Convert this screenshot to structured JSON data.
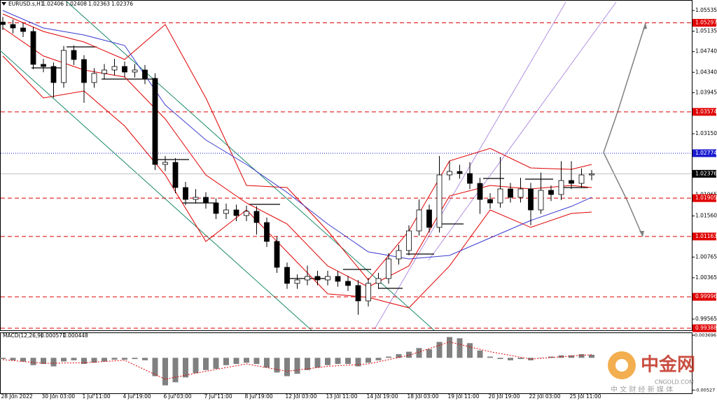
{
  "chart_data": {
    "type": "candlestick",
    "title": "EURUSD.s,H1",
    "header_values": [
      1.02406,
      1.02408,
      1.02363,
      1.02376
    ],
    "categories": [
      null,
      "28 Jun 2022",
      null,
      null,
      null,
      "30 Jun 03:00",
      null,
      null,
      null,
      "1 Jul 11:00",
      null,
      null,
      null,
      "4 Jul 19:00",
      null,
      null,
      null,
      "6 Jul 03:00",
      null,
      null,
      null,
      "7 Jul 11:00",
      null,
      null,
      null,
      "8 Jul 19:00",
      null,
      null,
      null,
      "12 Jul 03:00",
      null,
      null,
      null,
      "13 Jul 11:00",
      null,
      null,
      null,
      "14 Jul 19:00",
      null,
      null,
      null,
      "18 Jul 03:00",
      null,
      null,
      null,
      "19 Jul 11:00",
      null,
      null,
      null,
      "20 Jul 19:00",
      null,
      null,
      null,
      "22 Jul 03:00",
      null,
      null,
      null,
      "25 Jul 11:00",
      null
    ],
    "open": [
      1.0531,
      1.05264,
      1.05197,
      1.05129,
      1.04493,
      1.04452,
      1.04141,
      1.04763,
      1.04587,
      1.04141,
      1.04317,
      1.04384,
      1.04452,
      1.04344,
      1.04384,
      1.04222,
      1.02557,
      1.02597,
      1.0211,
      1.0188,
      1.01921,
      1.01812,
      1.01609,
      1.01677,
      1.01569,
      1.0165,
      1.01433,
      1.01068,
      1.00567,
      1.00256,
      1.00323,
      1.00391,
      1.00323,
      1.00391,
      1.00296,
      1.00215,
      0.99917,
      1.00256,
      1.0035,
      1.00729,
      1.00892,
      1.01271,
      1.01677,
      1.01339,
      1.02354,
      1.02421,
      1.02381,
      1.02191,
      1.0188,
      1.01812,
      1.02083,
      1.01921,
      1.02083,
      1.01677,
      1.02056,
      1.01975,
      1.02246,
      1.02191,
      1.02354
    ],
    "high": [
      1.0541,
      1.0536,
      1.053,
      1.0521,
      1.046,
      1.0453,
      1.0485,
      1.0486,
      1.0467,
      1.0442,
      1.045,
      1.046,
      1.0455,
      1.045,
      1.0448,
      1.0432,
      1.0272,
      1.0268,
      1.0222,
      1.0208,
      1.0202,
      1.019,
      1.018,
      1.0178,
      1.0176,
      1.0175,
      1.0153,
      1.0116,
      1.0066,
      1.0043,
      1.006,
      1.005,
      1.005,
      1.005,
      1.004,
      1.0032,
      1.0036,
      1.0046,
      1.0084,
      1.01,
      1.0138,
      1.0188,
      1.0178,
      1.0272,
      1.0262,
      1.0255,
      1.026,
      1.023,
      1.02,
      1.027,
      1.022,
      1.023,
      1.022,
      1.024,
      1.0215,
      1.0262,
      1.0262,
      1.0248,
      1.0245
    ],
    "low": [
      1.0516,
      1.0509,
      1.0502,
      1.044,
      1.0434,
      1.0385,
      1.0404,
      1.0448,
      1.0375,
      1.0404,
      1.042,
      1.0428,
      1.0424,
      1.0424,
      1.0411,
      1.0245,
      1.0243,
      1.02,
      1.0177,
      1.018,
      1.017,
      1.015,
      1.015,
      1.0146,
      1.0146,
      1.012,
      1.0096,
      1.0046,
      1.0015,
      1.0015,
      1.0022,
      1.0022,
      1.0022,
      1.0019,
      1.0011,
      0.9965,
      0.9981,
      1.0015,
      1.0025,
      1.0062,
      1.008,
      1.0118,
      1.0124,
      1.0124,
      1.0225,
      1.0228,
      1.0208,
      1.016,
      1.017,
      1.0172,
      1.0182,
      1.0182,
      1.0138,
      1.016,
      1.0185,
      1.0187,
      1.0208,
      1.021,
      1.0225
    ],
    "close": [
      1.05264,
      1.05197,
      1.05129,
      1.04493,
      1.04452,
      1.04141,
      1.04763,
      1.04587,
      1.04141,
      1.04317,
      1.04384,
      1.04452,
      1.04344,
      1.04384,
      1.04222,
      1.02557,
      1.02597,
      1.0211,
      1.0188,
      1.01921,
      1.01812,
      1.01609,
      1.01677,
      1.01569,
      1.0165,
      1.01433,
      1.01068,
      1.00567,
      1.00256,
      1.00323,
      1.00391,
      1.00323,
      1.00391,
      1.00296,
      1.00215,
      0.99917,
      1.00256,
      1.0035,
      1.00729,
      1.00892,
      1.01271,
      1.01677,
      1.01339,
      1.02354,
      1.02421,
      1.02381,
      1.02191,
      1.0188,
      1.01812,
      1.02083,
      1.01921,
      1.02083,
      1.01677,
      1.02056,
      1.01975,
      1.02246,
      1.02191,
      1.02354,
      1.02376
    ],
    "up_color": "#ffffff",
    "down_color": "#000000",
    "ylim": [
      0.99348,
      1.05711
    ],
    "yticks": [
      1.05535,
      1.05135,
      {
        "value": 1.0474,
        "label": "1.04740"
      },
      {
        "value": 1.0434,
        "label": "1.04340"
      },
      1.03945,
      {
        "value": 1.0315,
        "label": "1.03150"
      },
      1.01965,
      {
        "value": 1.0156,
        "label": "1.01560"
      },
      1.00765,
      1.00365,
      0.99565
    ],
    "indicators": [
      {
        "color": "#e00000",
        "x": [
          0,
          4,
          8,
          12,
          16,
          20,
          24,
          28,
          32,
          36,
          40,
          44,
          48,
          52,
          56,
          58
        ],
        "values": [
          1.05467,
          1.05129,
          1.04926,
          1.04587,
          1.05264,
          1.03843,
          1.02151,
          1.0211,
          1.01271,
          1.00323,
          1.01271,
          1.02625,
          1.02868,
          1.02489,
          1.02462,
          1.02557
        ]
      },
      {
        "color": "#e00000",
        "x": [
          0,
          4,
          8,
          12,
          16,
          20,
          24,
          28,
          32,
          36,
          40,
          44,
          48,
          52,
          56,
          58
        ],
        "values": [
          1.05197,
          1.04655,
          1.04384,
          1.04249,
          1.03437,
          1.02354,
          1.01812,
          1.01406,
          1.00594,
          1.00188,
          1.00594,
          1.01948,
          1.02151,
          1.02083,
          1.02151,
          1.0211
        ]
      },
      {
        "color": "#e00000",
        "x": [
          0,
          4,
          8,
          12,
          16,
          20,
          24,
          28,
          32,
          36,
          40,
          44,
          48,
          52,
          56,
          58
        ],
        "values": [
          1.04655,
          1.03843,
          1.03978,
          1.03301,
          1.02354,
          1.01068,
          1.01677,
          1.00865,
          1.00053,
          0.99985,
          0.99782,
          1.00594,
          1.01677,
          1.01339,
          1.01609,
          1.01636
        ]
      },
      {
        "color": "#3a3ad0",
        "x": [
          0,
          4,
          8,
          12,
          16,
          20,
          24,
          28,
          32,
          36,
          40,
          44,
          48,
          52,
          56,
          58
        ],
        "values": [
          1.05535,
          1.05197,
          1.05061,
          1.04858,
          1.03708,
          1.03031,
          1.02557,
          1.02015,
          1.01406,
          1.00865,
          1.00729,
          1.00797,
          1.01135,
          1.01474,
          1.01745,
          1.01921
        ]
      }
    ],
    "levels": [
      {
        "value": 1.05297,
        "color": "#e00000",
        "style": "dashed"
      },
      {
        "value": 1.03574,
        "color": "#e00000",
        "style": "dashed"
      },
      {
        "value": 1.02774,
        "color": "#1a1ad0",
        "style": "dotted"
      },
      {
        "value": 1.02376,
        "color": "#000000",
        "style": "solid"
      },
      {
        "value": 1.01905,
        "color": "#e00000",
        "style": "dashed"
      },
      {
        "value": 1.01163,
        "color": "#e00000",
        "style": "dashed"
      },
      {
        "value": 0.99996,
        "color": "#e00000",
        "style": "dashed"
      },
      {
        "value": 0.99388,
        "color": "#e00000",
        "style": "dashed"
      }
    ],
    "macd": {
      "title": "MACD(12,26,9)",
      "printed_values": [
        0.000571,
        0.000448
      ],
      "color": "#808080",
      "histogram": [
        -0.0002,
        -0.0004,
        -0.0006,
        -0.0012,
        -0.001,
        -0.0014,
        -0.0006,
        -0.0004,
        -0.001,
        -0.0008,
        -0.0006,
        -0.0003,
        -0.0003,
        -0.0002,
        -0.0004,
        -0.003,
        -0.0045,
        -0.004,
        -0.0032,
        -0.0025,
        -0.002,
        -0.0018,
        -0.0012,
        -0.001,
        -0.0008,
        -0.001,
        -0.0016,
        -0.0024,
        -0.003,
        -0.0026,
        -0.002,
        -0.0016,
        -0.0012,
        -0.001,
        -0.001,
        -0.0014,
        -0.0008,
        -0.0004,
        0.0002,
        0.0006,
        0.001,
        0.0016,
        0.0014,
        0.0026,
        0.0034,
        0.0032,
        0.0024,
        0.0012,
        0.0002,
        -0.0002,
        -0.0004,
        -0.0002,
        -0.0004,
        0,
        0.0002,
        0.0004,
        0.0004,
        0.0006,
        0.0005
      ],
      "signal": {
        "color": "#e00000",
        "x": [
          0,
          4,
          8,
          12,
          16,
          20,
          24,
          28,
          32,
          36,
          40,
          44,
          48,
          52,
          56,
          58
        ],
        "values": [
          -0.0003,
          -0.0009,
          -0.0008,
          -0.0004,
          -0.0035,
          -0.0022,
          -0.001,
          -0.0022,
          -0.0014,
          -0.001,
          0.0004,
          0.0026,
          0.001,
          -0.0002,
          0.0003,
          0.0005
        ]
      },
      "ylim": [
        -0.0058,
        0.00404
      ],
      "yticks": [
        0.003696,
        -0.00527
      ]
    },
    "watermark": {
      "name": "中金网",
      "site": "CNGOLD.COM",
      "tagline": "中 文 财 经 新 媒 体"
    }
  }
}
